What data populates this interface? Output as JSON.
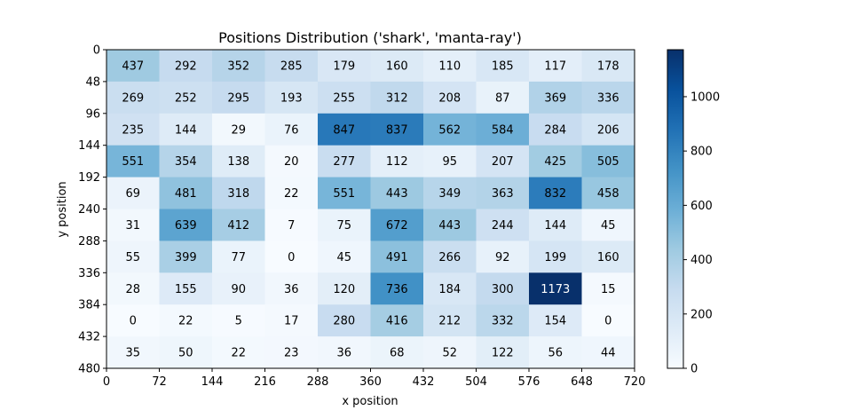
{
  "chart_data": {
    "type": "heatmap",
    "title": "Positions Distribution ('shark', 'manta-ray')",
    "xlabel": "x position",
    "ylabel": "y position",
    "xlim": [
      0,
      720
    ],
    "ylim": [
      0,
      480
    ],
    "x_ticks": [
      "0",
      "72",
      "144",
      "216",
      "288",
      "360",
      "432",
      "504",
      "576",
      "648",
      "720"
    ],
    "y_ticks": [
      "0",
      "48",
      "96",
      "144",
      "192",
      "240",
      "288",
      "336",
      "384",
      "432",
      "480"
    ],
    "values": [
      [
        437,
        292,
        352,
        285,
        179,
        160,
        110,
        185,
        117,
        178
      ],
      [
        269,
        252,
        295,
        193,
        255,
        312,
        208,
        87,
        369,
        336
      ],
      [
        235,
        144,
        29,
        76,
        847,
        837,
        562,
        584,
        284,
        206
      ],
      [
        551,
        354,
        138,
        20,
        277,
        112,
        95,
        207,
        425,
        505
      ],
      [
        69,
        481,
        318,
        22,
        551,
        443,
        349,
        363,
        832,
        458
      ],
      [
        31,
        639,
        412,
        7,
        75,
        672,
        443,
        244,
        144,
        45
      ],
      [
        55,
        399,
        77,
        0,
        45,
        491,
        266,
        92,
        199,
        160
      ],
      [
        28,
        155,
        90,
        36,
        120,
        736,
        184,
        300,
        1173,
        15
      ],
      [
        0,
        22,
        5,
        17,
        280,
        416,
        212,
        332,
        154,
        0
      ],
      [
        35,
        50,
        22,
        23,
        36,
        68,
        52,
        122,
        56,
        44
      ]
    ],
    "colormap": "Blues",
    "color_range": [
      0,
      1173
    ],
    "colorbar_ticks": [
      "0",
      "200",
      "400",
      "600",
      "800",
      "1000"
    ],
    "colorbar_tick_values": [
      0,
      200,
      400,
      600,
      800,
      1000
    ],
    "grid": false,
    "annotated": true
  }
}
